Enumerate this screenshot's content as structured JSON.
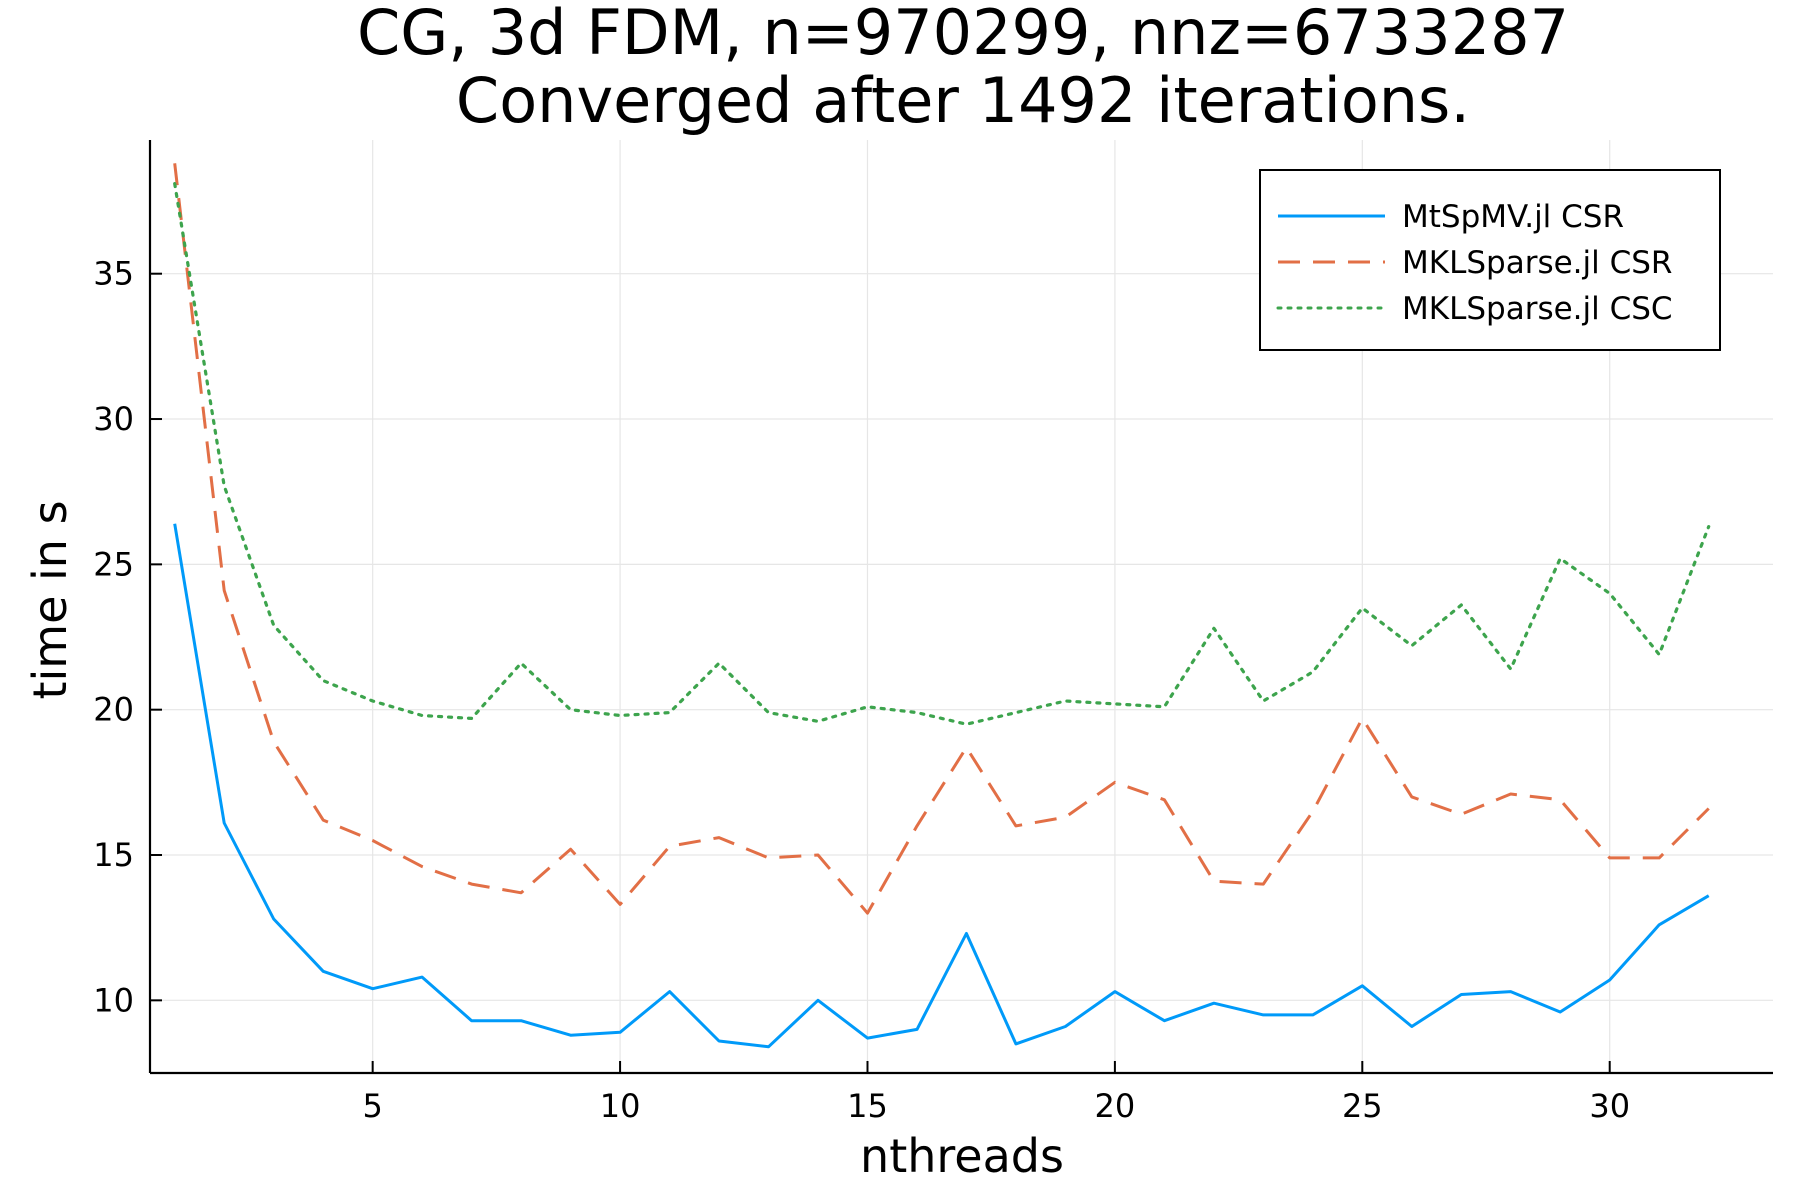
{
  "chart_data": {
    "type": "line",
    "title": "CG, 3d FDM, n=970299, nnz=6733287",
    "subtitle": "Converged after 1492 iterations.",
    "xlabel": "nthreads",
    "ylabel": "time in s",
    "xlim": [
      0.5,
      33.3
    ],
    "ylim": [
      7.5,
      39.6
    ],
    "xticks": [
      5,
      10,
      15,
      20,
      25,
      30
    ],
    "yticks": [
      10,
      15,
      20,
      25,
      30,
      35
    ],
    "grid": true,
    "legend_position": "top-right",
    "x": [
      1,
      2,
      3,
      4,
      5,
      6,
      7,
      8,
      9,
      10,
      11,
      12,
      13,
      14,
      15,
      16,
      17,
      18,
      19,
      20,
      21,
      22,
      23,
      24,
      25,
      26,
      27,
      28,
      29,
      30,
      31,
      32
    ],
    "series": [
      {
        "name": "MtSpMV.jl CSR",
        "color": "#009af9",
        "style": "solid",
        "values": [
          26.4,
          16.1,
          12.8,
          11.0,
          10.4,
          10.8,
          9.3,
          9.3,
          8.8,
          8.9,
          10.3,
          8.6,
          8.4,
          10.0,
          8.7,
          9.0,
          12.3,
          8.5,
          9.1,
          10.3,
          9.3,
          9.9,
          9.5,
          9.5,
          10.5,
          9.1,
          10.2,
          10.3,
          9.6,
          10.7,
          12.6,
          13.6
        ]
      },
      {
        "name": "MKLSparse.jl CSR",
        "color": "#e26f46",
        "style": "dashed",
        "values": [
          38.8,
          24.1,
          18.9,
          16.2,
          15.5,
          14.6,
          14.0,
          13.7,
          15.2,
          13.3,
          15.3,
          15.6,
          14.9,
          15.0,
          13.0,
          16.0,
          18.7,
          16.0,
          16.3,
          17.5,
          16.9,
          14.1,
          14.0,
          16.5,
          19.7,
          17.0,
          16.4,
          17.1,
          16.9,
          14.9,
          14.9,
          16.6
        ]
      },
      {
        "name": "MKLSparse.jl CSC",
        "color": "#3da44d",
        "style": "dotted",
        "values": [
          38.1,
          27.7,
          22.9,
          21.0,
          20.3,
          19.8,
          19.7,
          21.6,
          20.0,
          19.8,
          19.9,
          21.6,
          19.9,
          19.6,
          20.1,
          19.9,
          19.5,
          19.9,
          20.3,
          20.2,
          20.1,
          22.8,
          20.3,
          21.3,
          23.5,
          22.2,
          23.6,
          21.4,
          25.2,
          24.0,
          21.9,
          26.3
        ]
      }
    ]
  }
}
